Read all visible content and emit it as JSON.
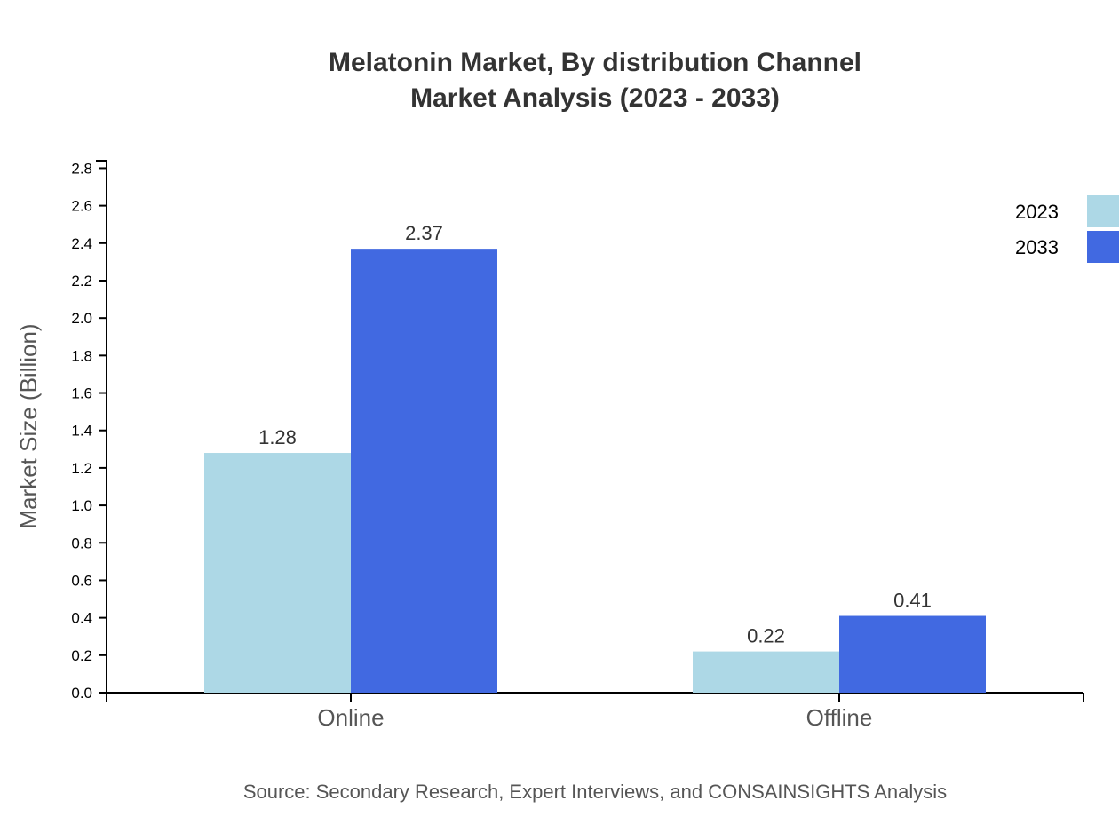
{
  "chart_data": {
    "type": "bar",
    "title": [
      "Melatonin Market, By distribution Channel",
      "Market Analysis (2023 - 2033)"
    ],
    "ylabel": "Market Size (Billion)",
    "xlabel": "",
    "categories": [
      "Online",
      "Offline"
    ],
    "series": [
      {
        "name": "2023",
        "values": [
          1.28,
          0.22
        ],
        "color": "#ADD8E6"
      },
      {
        "name": "2033",
        "values": [
          2.37,
          0.41
        ],
        "color": "#4169E1"
      }
    ],
    "ylim": [
      0,
      2.84
    ],
    "yticks": [
      "0.0",
      "0.2",
      "0.4",
      "0.6",
      "0.8",
      "1.0",
      "1.2",
      "1.4",
      "1.6",
      "1.8",
      "2.0",
      "2.2",
      "2.4",
      "2.6",
      "2.8"
    ],
    "grid": false,
    "legend_position": "top-right",
    "source": "Source: Secondary Research, Expert Interviews, and CONSAINSIGHTS Analysis"
  }
}
